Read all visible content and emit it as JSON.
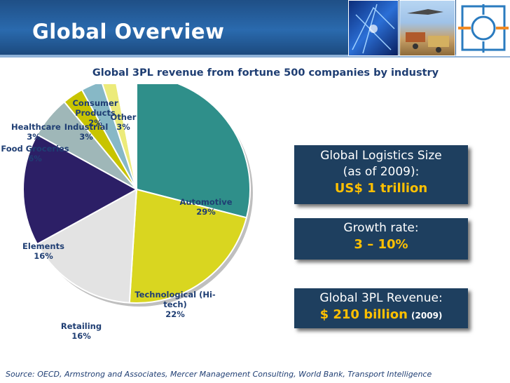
{
  "header": {
    "title": "Global Overview"
  },
  "chart_data": {
    "type": "pie",
    "title": "Global 3PL revenue from fortune 500 companies by industry",
    "slices": [
      {
        "label": "Automotive",
        "value": 29,
        "pct": "29%",
        "color": "#2f8f8a"
      },
      {
        "label": "Technological (Hi-tech)",
        "value": 22,
        "pct": "22%",
        "color": "#d9d620"
      },
      {
        "label": "Retailing",
        "value": 16,
        "pct": "16%",
        "color": "#e3e3e3"
      },
      {
        "label": "Elements",
        "value": 16,
        "pct": "16%",
        "color": "#2c1f66"
      },
      {
        "label": "Food Groceries",
        "value": 6,
        "pct": "6%",
        "color": "#9fb7b8"
      },
      {
        "label": "Healthcare",
        "value": 3,
        "pct": "3%",
        "color": "#c8c400"
      },
      {
        "label": "Industrial",
        "value": 3,
        "pct": "3%",
        "color": "#87b8c6"
      },
      {
        "label": "Consumer Products",
        "value": 2,
        "pct": "2%",
        "color": "#eceb7a"
      },
      {
        "label": "Other",
        "value": 3,
        "pct": "3%",
        "color": "#ffffff"
      }
    ]
  },
  "labels": {
    "automotive": {
      "name": "Automotive",
      "pct": "29%"
    },
    "tech": {
      "line1": "Technological (Hi-",
      "line2": "tech)",
      "pct": "22%"
    },
    "retailing": {
      "name": "Retailing",
      "pct": "16%"
    },
    "elements": {
      "name": "Elements",
      "pct": "16%"
    },
    "food": {
      "name": "Food Groceries",
      "pct": "6%"
    },
    "healthcare": {
      "name": "Healthcare",
      "pct": "3%"
    },
    "industrial": {
      "name": "Industrial",
      "pct": "3%"
    },
    "consumer": {
      "name": "Consumer Products",
      "pct": "2%"
    },
    "other": {
      "name": "Other",
      "pct": "3%"
    }
  },
  "boxes": {
    "logistics": {
      "line1": "Global Logistics Size",
      "line2": "(as of 2009):",
      "value": "US$ 1 trillion"
    },
    "growth": {
      "line1": "Growth rate:",
      "value": "3 – 10%"
    },
    "revenue": {
      "line1": "Global 3PL Revenue:",
      "value": "$ 210 billion",
      "year": "(2009)"
    }
  },
  "source": "Source: OECD, Armstrong and Associates, Mercer Management Consulting, World Bank, Transport Intelligence"
}
